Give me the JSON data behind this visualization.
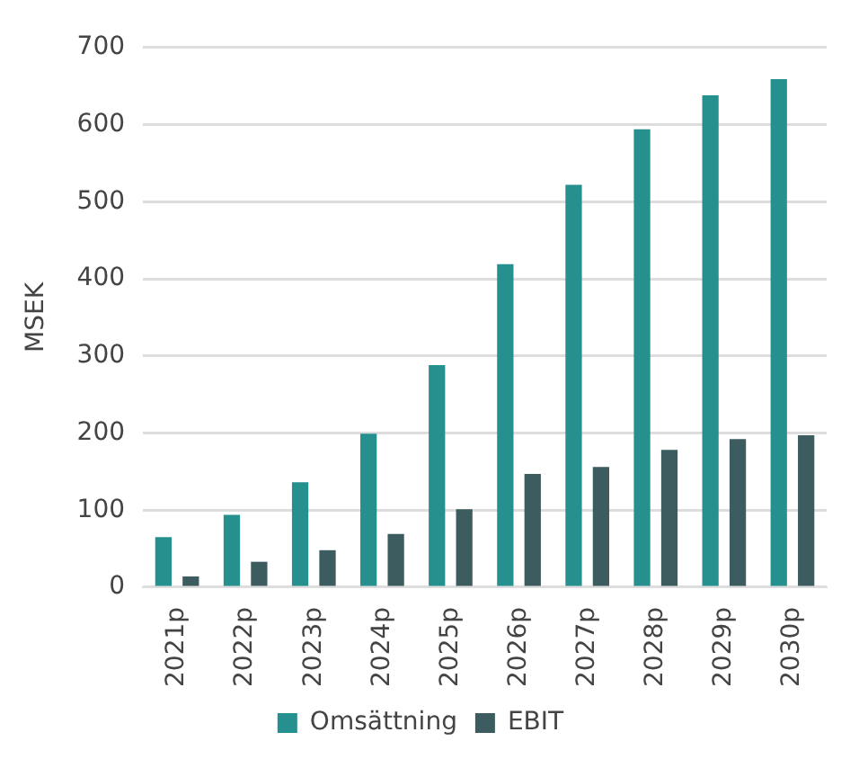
{
  "chart_data": {
    "type": "bar",
    "ylabel": "MSEK",
    "categories": [
      "2021p",
      "2022p",
      "2023p",
      "2024p",
      "2025p",
      "2026p",
      "2027p",
      "2028p",
      "2029p",
      "2030p"
    ],
    "series": [
      {
        "name": "Omsättning",
        "color": "#26908f",
        "values": [
          65,
          94,
          136,
          199,
          288,
          419,
          522,
          594,
          638,
          659
        ]
      },
      {
        "name": "EBIT",
        "color": "#3c5c60",
        "values": [
          14,
          33,
          48,
          69,
          101,
          147,
          156,
          178,
          192,
          197
        ]
      }
    ],
    "ylim": [
      0,
      700
    ],
    "yticks": [
      0,
      100,
      200,
      300,
      400,
      500,
      600,
      700
    ],
    "grid": "y",
    "legend": "bottom"
  }
}
